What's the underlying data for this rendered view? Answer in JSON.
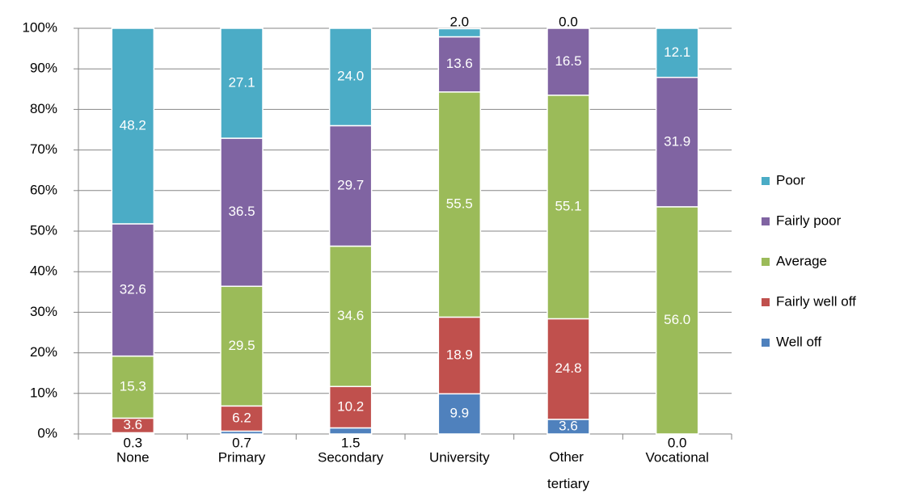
{
  "chart_data": {
    "type": "stacked_bar",
    "categories": [
      "None",
      "Primary",
      "Secondary",
      "University",
      "Other tertiary",
      "Vocational"
    ],
    "series": [
      {
        "name": "Well off",
        "color": "#4f81bd",
        "values": [
          0.3,
          0.7,
          1.5,
          9.9,
          3.6,
          0.0
        ],
        "value_labels": [
          "0.3",
          "0.7",
          "1.5",
          "9.9",
          "3.6",
          "0.0"
        ]
      },
      {
        "name": "Fairly well off",
        "color": "#c0504d",
        "values": [
          3.6,
          6.2,
          10.2,
          18.9,
          24.8,
          null
        ],
        "value_labels": [
          "3.6",
          "6.2",
          "10.2",
          "18.9",
          "24.8",
          null
        ]
      },
      {
        "name": "Average",
        "color": "#9bbb59",
        "values": [
          15.3,
          29.5,
          34.6,
          55.5,
          55.1,
          56.0
        ],
        "value_labels": [
          "15.3",
          "29.5",
          "34.6",
          "55.5",
          "55.1",
          "56.0"
        ]
      },
      {
        "name": "Fairly poor",
        "color": "#8064a2",
        "values": [
          32.6,
          36.5,
          29.7,
          13.6,
          16.5,
          31.9
        ],
        "value_labels": [
          "32.6",
          "36.5",
          "29.7",
          "13.6",
          "16.5",
          "31.9"
        ]
      },
      {
        "name": "Poor",
        "color": "#4bacc6",
        "values": [
          48.2,
          27.1,
          24.0,
          2.0,
          0.0,
          12.1
        ],
        "value_labels": [
          "48.2",
          "27.1",
          "24.0",
          "2.0",
          "0.0",
          "12.1"
        ]
      }
    ],
    "ylim": [
      0,
      100
    ],
    "yticks": [
      {
        "value": 0,
        "label": "0%"
      },
      {
        "value": 10,
        "label": "10%"
      },
      {
        "value": 20,
        "label": "20%"
      },
      {
        "value": 30,
        "label": "30%"
      },
      {
        "value": 40,
        "label": "40%"
      },
      {
        "value": 50,
        "label": "50%"
      },
      {
        "value": 60,
        "label": "60%"
      },
      {
        "value": 70,
        "label": "70%"
      },
      {
        "value": 80,
        "label": "80%"
      },
      {
        "value": 90,
        "label": "90%"
      },
      {
        "value": 100,
        "label": "100%"
      }
    ],
    "grid": true,
    "legend": "right"
  }
}
